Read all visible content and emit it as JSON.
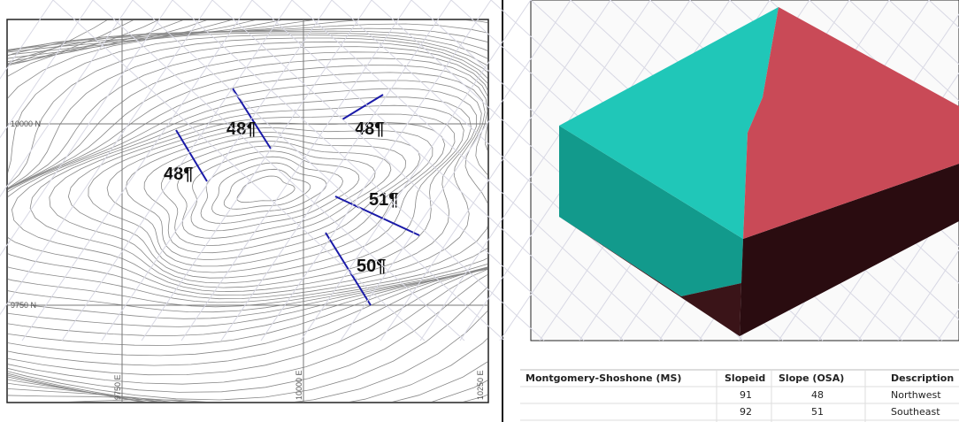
{
  "map": {
    "grid_labels": [
      "10000 N",
      "9750 N",
      "9750 E",
      "10000 E",
      "10250 E"
    ],
    "slope_labels": [
      "48¶",
      "48¶",
      "48¶",
      "51¶",
      "50¶"
    ]
  },
  "table": {
    "headers": [
      "Montgomery-Shoshone (MS)",
      "Slopeid",
      "Slope (OSA)",
      "Description"
    ],
    "rows": [
      [
        91,
        48,
        "Northwest"
      ],
      [
        92,
        51,
        "Southeast"
      ]
    ]
  }
}
